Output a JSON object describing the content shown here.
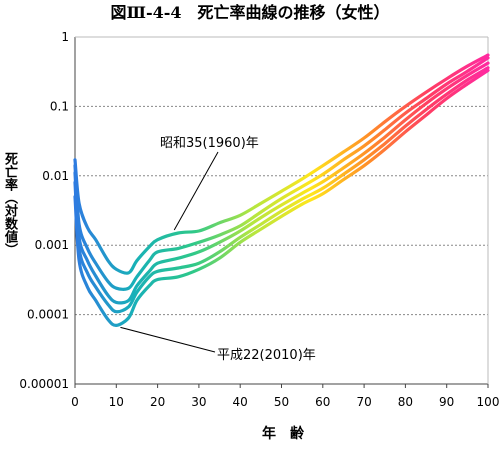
{
  "chart_data": {
    "type": "line",
    "title": "図Ⅲ-4-4　死亡率曲線の推移（女性）",
    "xlabel": "年　齢",
    "ylabel": "死亡率（対数値）",
    "x_ticks": [
      0,
      10,
      20,
      30,
      40,
      50,
      60,
      70,
      80,
      90,
      100
    ],
    "y_ticks": [
      "0.00001",
      "0.0001",
      "0.001",
      "0.01",
      "0.1",
      "1"
    ],
    "y_scale": "log",
    "xlim": [
      0,
      100
    ],
    "ylim": [
      1e-05,
      1
    ],
    "grid": "horizontal dashed",
    "gradient_colors": [
      "#2e7be0",
      "#18b0b8",
      "#2ec88a",
      "#b4e640",
      "#ffe61c",
      "#ff8c28",
      "#ff3c64",
      "#ff2aa0"
    ],
    "annotations": [
      {
        "text": "昭和35(1960)年",
        "series": "昭和35(1960)年",
        "x": 25
      },
      {
        "text": "平成22(2010)年",
        "series": "平成22(2010)年",
        "x": 12
      }
    ],
    "series": [
      {
        "name": "昭和35(1960)年",
        "x": [
          0,
          1,
          3,
          5,
          8,
          10,
          13,
          15,
          18,
          20,
          25,
          30,
          35,
          40,
          45,
          50,
          55,
          60,
          65,
          70,
          75,
          80,
          85,
          90,
          95,
          100
        ],
        "values": [
          0.017,
          0.004,
          0.0018,
          0.0012,
          0.0006,
          0.00045,
          0.0004,
          0.0006,
          0.00095,
          0.0012,
          0.0015,
          0.0016,
          0.0021,
          0.0027,
          0.004,
          0.006,
          0.009,
          0.014,
          0.022,
          0.035,
          0.06,
          0.1,
          0.16,
          0.25,
          0.38,
          0.55
        ]
      },
      {
        "name": "",
        "x": [
          0,
          1,
          3,
          5,
          8,
          10,
          13,
          15,
          18,
          20,
          25,
          30,
          35,
          40,
          45,
          50,
          55,
          60,
          65,
          70,
          75,
          80,
          85,
          90,
          95,
          100
        ],
        "values": [
          0.014,
          0.002,
          0.0009,
          0.00055,
          0.0003,
          0.00024,
          0.00024,
          0.00035,
          0.0006,
          0.0008,
          0.0009,
          0.0011,
          0.0014,
          0.0019,
          0.003,
          0.0047,
          0.007,
          0.0105,
          0.017,
          0.027,
          0.046,
          0.08,
          0.13,
          0.21,
          0.32,
          0.5
        ]
      },
      {
        "name": "",
        "x": [
          0,
          1,
          3,
          5,
          8,
          10,
          13,
          15,
          18,
          20,
          25,
          30,
          35,
          40,
          45,
          50,
          55,
          60,
          65,
          70,
          75,
          80,
          85,
          90,
          95,
          100
        ],
        "values": [
          0.011,
          0.0013,
          0.0006,
          0.00036,
          0.00019,
          0.00015,
          0.00016,
          0.00026,
          0.00042,
          0.00055,
          0.00065,
          0.0008,
          0.0011,
          0.0016,
          0.0025,
          0.0038,
          0.0056,
          0.0082,
          0.013,
          0.021,
          0.036,
          0.064,
          0.11,
          0.18,
          0.28,
          0.42
        ]
      },
      {
        "name": "",
        "x": [
          0,
          1,
          3,
          5,
          8,
          10,
          13,
          15,
          18,
          20,
          25,
          30,
          35,
          40,
          45,
          50,
          55,
          60,
          65,
          70,
          75,
          80,
          85,
          90,
          95,
          100
        ],
        "values": [
          0.008,
          0.0009,
          0.0004,
          0.00025,
          0.00014,
          0.00011,
          0.00013,
          0.00021,
          0.00035,
          0.00042,
          0.00047,
          0.00055,
          0.0008,
          0.0013,
          0.002,
          0.0031,
          0.0046,
          0.0066,
          0.0105,
          0.017,
          0.029,
          0.052,
          0.09,
          0.15,
          0.24,
          0.36
        ]
      },
      {
        "name": "平成22(2010)年",
        "x": [
          0,
          1,
          3,
          5,
          8,
          10,
          13,
          15,
          18,
          20,
          25,
          30,
          35,
          40,
          45,
          50,
          55,
          60,
          65,
          70,
          75,
          80,
          85,
          90,
          95,
          100
        ],
        "values": [
          0.005,
          0.0006,
          0.00025,
          0.00016,
          8.5e-05,
          7e-05,
          9e-05,
          0.00016,
          0.00026,
          0.00032,
          0.00035,
          0.00045,
          0.00065,
          0.0011,
          0.0017,
          0.0026,
          0.0039,
          0.0055,
          0.0088,
          0.014,
          0.024,
          0.043,
          0.075,
          0.13,
          0.21,
          0.33
        ]
      }
    ]
  }
}
